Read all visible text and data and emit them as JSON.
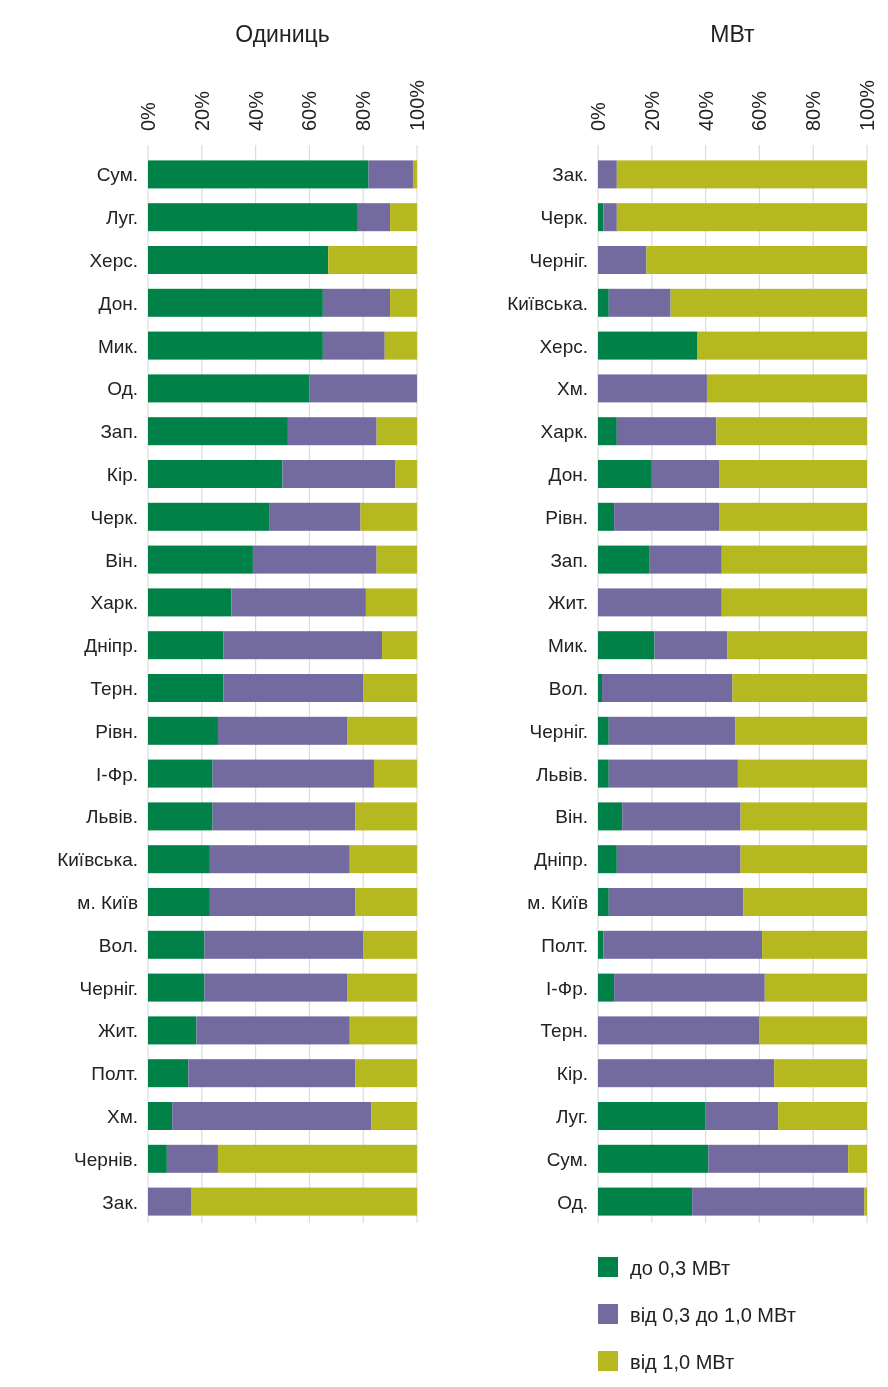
{
  "chart_data": [
    {
      "type": "bar",
      "orientation": "horizontal",
      "stacked": true,
      "title": "Одиниць",
      "grid": "x",
      "xlim": [
        0,
        100
      ],
      "xticks": [
        {
          "value": 0,
          "label": "0%"
        },
        {
          "value": 20,
          "label": "20%"
        },
        {
          "value": 40,
          "label": "40%"
        },
        {
          "value": 60,
          "label": "60%"
        },
        {
          "value": 80,
          "label": "80%"
        },
        {
          "value": 100,
          "label": "100%"
        }
      ],
      "categories": [
        "Сум.",
        "Луг.",
        "Херс.",
        "Дон.",
        "Мик.",
        "Од.",
        "Зап.",
        "Кір.",
        "Черк.",
        "Він.",
        "Харк.",
        "Дніпр.",
        "Терн.",
        "Рівн.",
        "І-Фр.",
        "Львів.",
        "Київська.",
        "м. Київ",
        "Вол.",
        "Черніг.",
        "Жит.",
        "Полт.",
        "Хм.",
        "Чернів.",
        "Зак."
      ],
      "series": [
        {
          "color": "#008147",
          "values": [
            82,
            78,
            67,
            65,
            65,
            60,
            52,
            50,
            45,
            39,
            31,
            28,
            28,
            26,
            24,
            24,
            23,
            23,
            21,
            21,
            18,
            15,
            9,
            7,
            0
          ]
        },
        {
          "color": "#736a9f",
          "values": [
            16.5,
            12,
            0,
            25,
            23,
            40,
            33,
            42,
            34,
            46,
            50,
            59,
            52,
            48,
            60,
            53,
            52,
            54,
            59,
            53,
            57,
            62,
            74,
            19,
            16
          ]
        },
        {
          "color": "#b5b81e",
          "values": [
            1.5,
            10,
            33,
            10,
            12,
            0,
            15,
            8,
            21,
            15,
            19,
            13,
            20,
            26,
            16,
            23,
            25,
            23,
            20,
            26,
            25,
            23,
            17,
            74,
            84
          ]
        }
      ]
    },
    {
      "type": "bar",
      "orientation": "horizontal",
      "stacked": true,
      "title": "МВт",
      "grid": "x",
      "legend": "bottom",
      "xlim": [
        0,
        100
      ],
      "xticks": [
        {
          "value": 0,
          "label": "0%"
        },
        {
          "value": 20,
          "label": "20%"
        },
        {
          "value": 40,
          "label": "40%"
        },
        {
          "value": 60,
          "label": "60%"
        },
        {
          "value": 80,
          "label": "80%"
        },
        {
          "value": 100,
          "label": "100%"
        }
      ],
      "categories": [
        "Зак.",
        "Черк.",
        "Черніг.",
        "Київська.",
        "Херс.",
        "Хм.",
        "Харк.",
        "Дон.",
        "Рівн.",
        "Зап.",
        "Жит.",
        "Мик.",
        "Вол.",
        "Черніг.",
        "Львів.",
        "Він.",
        "Дніпр.",
        "м. Київ",
        "Полт.",
        "І-Фр.",
        "Терн.",
        "Кір.",
        "Луг.",
        "Сум.",
        "Од."
      ],
      "series": [
        {
          "name": "до 0,3 МВт",
          "color": "#008147",
          "values": [
            0,
            2,
            0,
            4,
            37,
            0,
            7,
            20,
            6,
            19,
            0,
            21,
            1.5,
            4,
            4,
            9,
            7,
            4,
            2,
            6,
            0,
            0,
            40,
            41,
            35
          ]
        },
        {
          "name": "від 0,3 до 1,0 МВт",
          "color": "#736a9f",
          "values": [
            7,
            5,
            18,
            23,
            0,
            40.5,
            37,
            25,
            39,
            27,
            46,
            27,
            48.5,
            47,
            48,
            44,
            46,
            50,
            59,
            56,
            60,
            65.5,
            27,
            52,
            64
          ]
        },
        {
          "name": "від 1,0 МВт",
          "color": "#b5b81e",
          "values": [
            93,
            93,
            82,
            73,
            63,
            59.5,
            56,
            55,
            55,
            54,
            54,
            52,
            50,
            49,
            48,
            47,
            47,
            46,
            39,
            38,
            40,
            34.5,
            33,
            7,
            1
          ]
        }
      ]
    }
  ]
}
